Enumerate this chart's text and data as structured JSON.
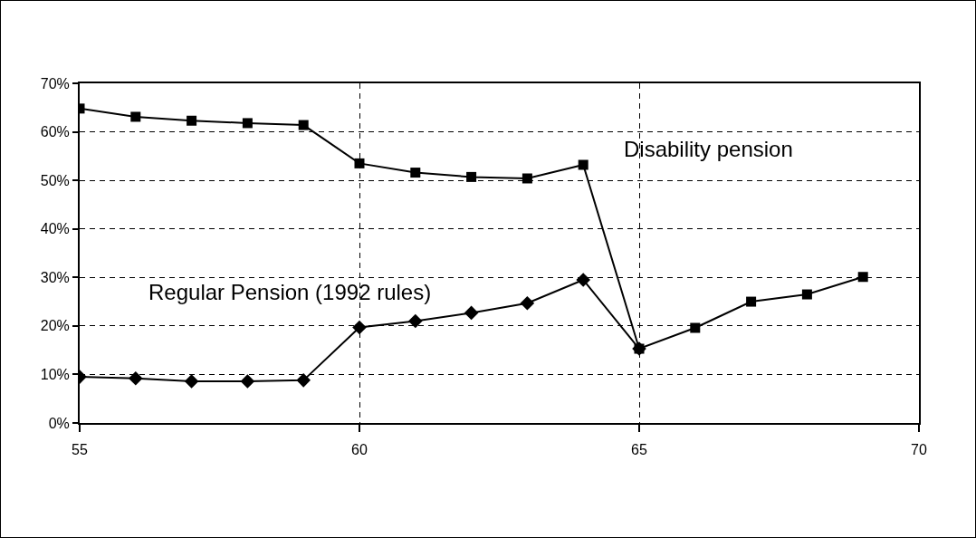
{
  "chart_data": {
    "type": "line",
    "x": [
      55,
      56,
      57,
      58,
      59,
      60,
      61,
      62,
      63,
      64,
      65,
      66,
      67,
      68,
      69
    ],
    "series": [
      {
        "name": "Disability pension",
        "color": "#000000",
        "marker": "square",
        "values": [
          64.8,
          63.1,
          62.3,
          61.8,
          61.4,
          53.5,
          51.6,
          50.7,
          50.4,
          53.2,
          15.3,
          19.6,
          25.0,
          26.5,
          30.1
        ]
      },
      {
        "name": "Regular Pension (1992 rules)",
        "color": "#000000",
        "marker": "diamond",
        "values": [
          9.5,
          9.2,
          8.6,
          8.6,
          8.8,
          19.7,
          21.0,
          22.7,
          24.7,
          29.5,
          15.3,
          null,
          null,
          null,
          null
        ]
      }
    ],
    "xlim": [
      55,
      70
    ],
    "xticks": [
      55,
      60,
      65,
      70
    ],
    "ylim": [
      0,
      70
    ],
    "yticks": [
      {
        "value": 0,
        "label": "0%"
      },
      {
        "value": 10,
        "label": "10%"
      },
      {
        "value": 20,
        "label": "20%"
      },
      {
        "value": 30,
        "label": "30%"
      },
      {
        "value": 40,
        "label": "40%"
      },
      {
        "value": 50,
        "label": "50%"
      },
      {
        "value": 60,
        "label": "60%"
      },
      {
        "value": 70,
        "label": "70%"
      }
    ],
    "grid": true,
    "legend": false,
    "line_style": "solid"
  }
}
